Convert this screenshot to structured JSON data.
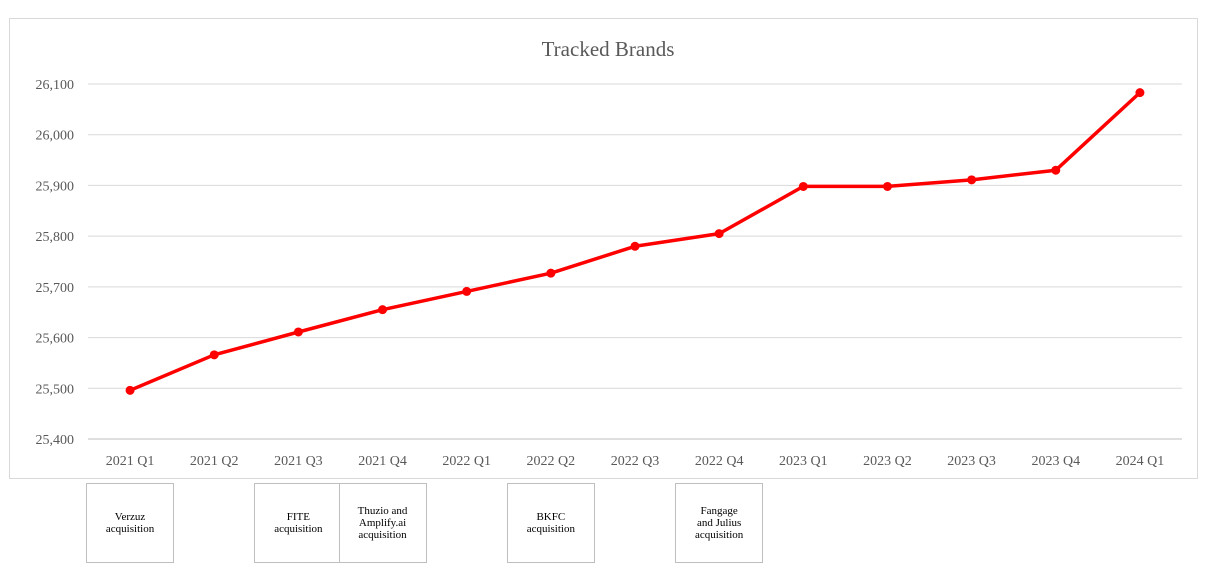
{
  "chart_data": {
    "type": "line",
    "title": "Tracked Brands",
    "xlabel": "",
    "ylabel": "",
    "categories": [
      "2021 Q1",
      "2021 Q2",
      "2021 Q3",
      "2021 Q4",
      "2022 Q1",
      "2022 Q2",
      "2022 Q3",
      "2022 Q4",
      "2023 Q1",
      "2023 Q2",
      "2023 Q3",
      "2023 Q4",
      "2024 Q1"
    ],
    "series": [
      {
        "values": [
          25496,
          25566,
          25611,
          25655,
          25691,
          25727,
          25780,
          25805,
          25898,
          25898,
          25911,
          25930,
          26083
        ]
      }
    ],
    "ylim": [
      25400,
      26100
    ],
    "yticks": [
      25400,
      25500,
      25600,
      25700,
      25800,
      25900,
      26000,
      26100
    ],
    "ytick_labels": [
      "25,400",
      "25,500",
      "25,600",
      "25,700",
      "25,800",
      "25,900",
      "26,000",
      "26,100"
    ],
    "grid": true,
    "line_color": "#ff0000",
    "annotations": [
      {
        "text": "Verzuz\nacquisition",
        "category": "2021 Q1"
      },
      {
        "text": "FITE\nacquisition",
        "category": "2021 Q3"
      },
      {
        "text": "Thuzio and\nAmplify.ai\nacquisition",
        "category": "2021 Q4"
      },
      {
        "text": "BKFC\nacquisition",
        "category": "2022 Q2"
      },
      {
        "text": "Fangage\nand Julius\nacquisition",
        "category": "2022 Q4"
      }
    ]
  }
}
